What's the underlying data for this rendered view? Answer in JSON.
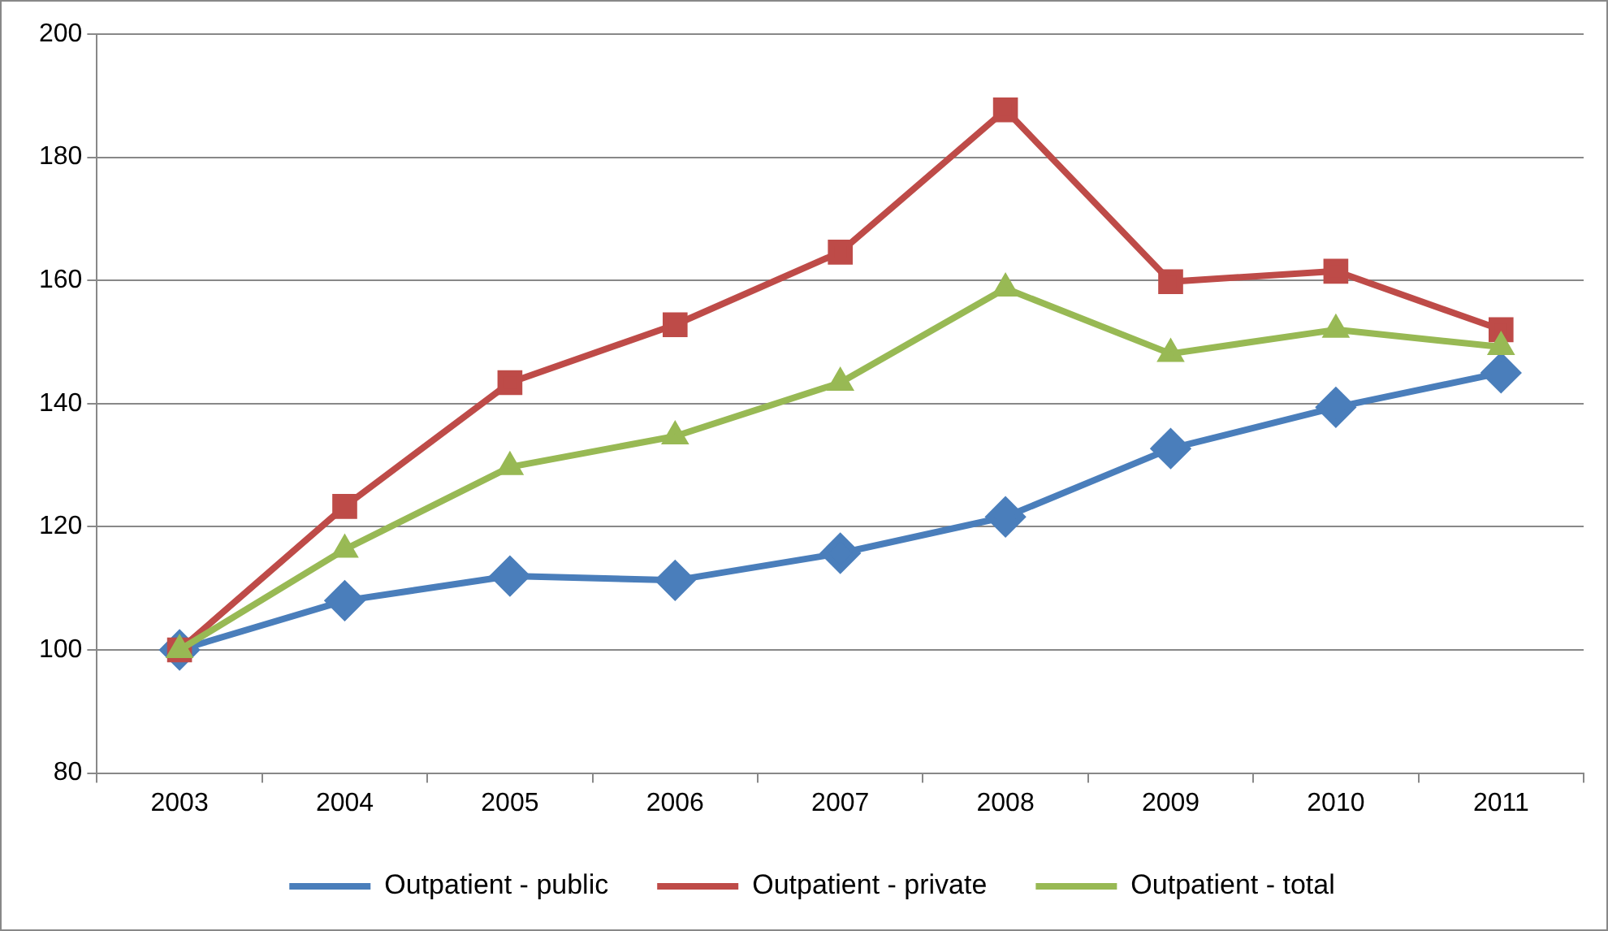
{
  "chart_data": {
    "type": "line",
    "categories": [
      "2003",
      "2004",
      "2005",
      "2006",
      "2007",
      "2008",
      "2009",
      "2010",
      "2011"
    ],
    "series": [
      {
        "name": "Outpatient - public",
        "color": "#4a7ebb",
        "marker": "diamond",
        "values": [
          100,
          108,
          112,
          111.3,
          115.7,
          121.6,
          132.7,
          139.4,
          145
        ]
      },
      {
        "name": "Outpatient - private",
        "color": "#be4b48",
        "marker": "square",
        "values": [
          100,
          123.3,
          143.4,
          152.8,
          164.6,
          187.7,
          159.8,
          161.5,
          152
        ]
      },
      {
        "name": "Outpatient - total",
        "color": "#98b954",
        "marker": "triangle",
        "values": [
          100,
          116.3,
          129.7,
          134.7,
          143.4,
          158.7,
          148.1,
          152,
          149.2
        ]
      }
    ],
    "ylim": [
      80,
      200
    ],
    "yticks": [
      80,
      100,
      120,
      140,
      160,
      180,
      200
    ],
    "grid": "y",
    "legend": "bottom",
    "line_style": "solid"
  }
}
